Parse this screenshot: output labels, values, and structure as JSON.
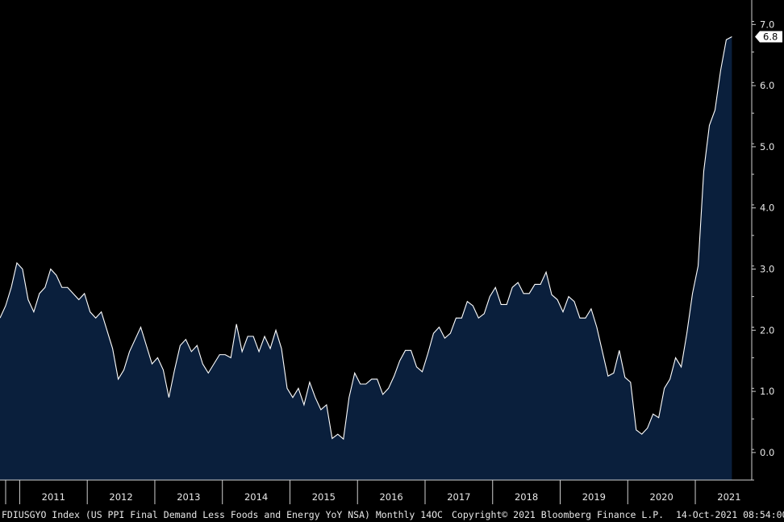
{
  "chart_data": {
    "type": "area",
    "title": "",
    "ylim": [
      -0.45,
      7.4
    ],
    "yticks": [
      0.0,
      1.0,
      2.0,
      3.0,
      4.0,
      5.0,
      6.0,
      7.0
    ],
    "ytick_labels": [
      "0.0",
      "1.0",
      "2.0",
      "3.0",
      "4.0",
      "5.0",
      "6.0",
      "7.0"
    ],
    "xticks": [
      "2011",
      "2012",
      "2013",
      "2014",
      "2015",
      "2016",
      "2017",
      "2018",
      "2019",
      "2020",
      "2021"
    ],
    "x_start": "2010-09",
    "frequency": "monthly",
    "last_value_label": "6.8",
    "grid": false,
    "legend": "none",
    "colors": {
      "fill": "#0a1f3c",
      "line": "#ffffff",
      "background": "#000000",
      "text": "#e8e8e8"
    },
    "series": [
      {
        "values": [
          2.2,
          2.4,
          2.7,
          3.1,
          3.0,
          2.5,
          2.3,
          2.6,
          2.7,
          3.0,
          2.9,
          2.7,
          2.7,
          2.6,
          2.5,
          2.6,
          2.3,
          2.2,
          2.3,
          2.0,
          1.7,
          1.2,
          1.35,
          1.65,
          1.85,
          2.05,
          1.75,
          1.45,
          1.55,
          1.35,
          0.9,
          1.35,
          1.75,
          1.85,
          1.65,
          1.75,
          1.45,
          1.3,
          1.45,
          1.6,
          1.6,
          1.55,
          2.1,
          1.65,
          1.9,
          1.9,
          1.65,
          1.9,
          1.7,
          2.0,
          1.7,
          1.05,
          0.9,
          1.05,
          0.78,
          1.15,
          0.9,
          0.7,
          0.78,
          0.23,
          0.3,
          0.22,
          0.9,
          1.3,
          1.12,
          1.12,
          1.2,
          1.2,
          0.95,
          1.05,
          1.25,
          1.5,
          1.67,
          1.67,
          1.4,
          1.32,
          1.62,
          1.95,
          2.05,
          1.87,
          1.95,
          2.2,
          2.2,
          2.47,
          2.4,
          2.2,
          2.27,
          2.55,
          2.7,
          2.42,
          2.42,
          2.7,
          2.78,
          2.6,
          2.6,
          2.75,
          2.75,
          2.95,
          2.58,
          2.5,
          2.3,
          2.55,
          2.47,
          2.2,
          2.2,
          2.35,
          2.05,
          1.65,
          1.25,
          1.3,
          1.67,
          1.23,
          1.15,
          0.37,
          0.3,
          0.4,
          0.63,
          0.57,
          1.05,
          1.2,
          1.55,
          1.4,
          1.95,
          2.6,
          3.05,
          4.6,
          5.35,
          5.6,
          6.25,
          6.75,
          6.8
        ]
      }
    ]
  },
  "footer": {
    "ticker": "FDIUSGYO Index (US PPI Final Demand Less Foods and Energy YoY NSA)  Monthly 14OC",
    "copyright": "Copyright© 2021 Bloomberg Finance L.P.",
    "timestamp": "14-Oct-2021 08:54:00"
  }
}
